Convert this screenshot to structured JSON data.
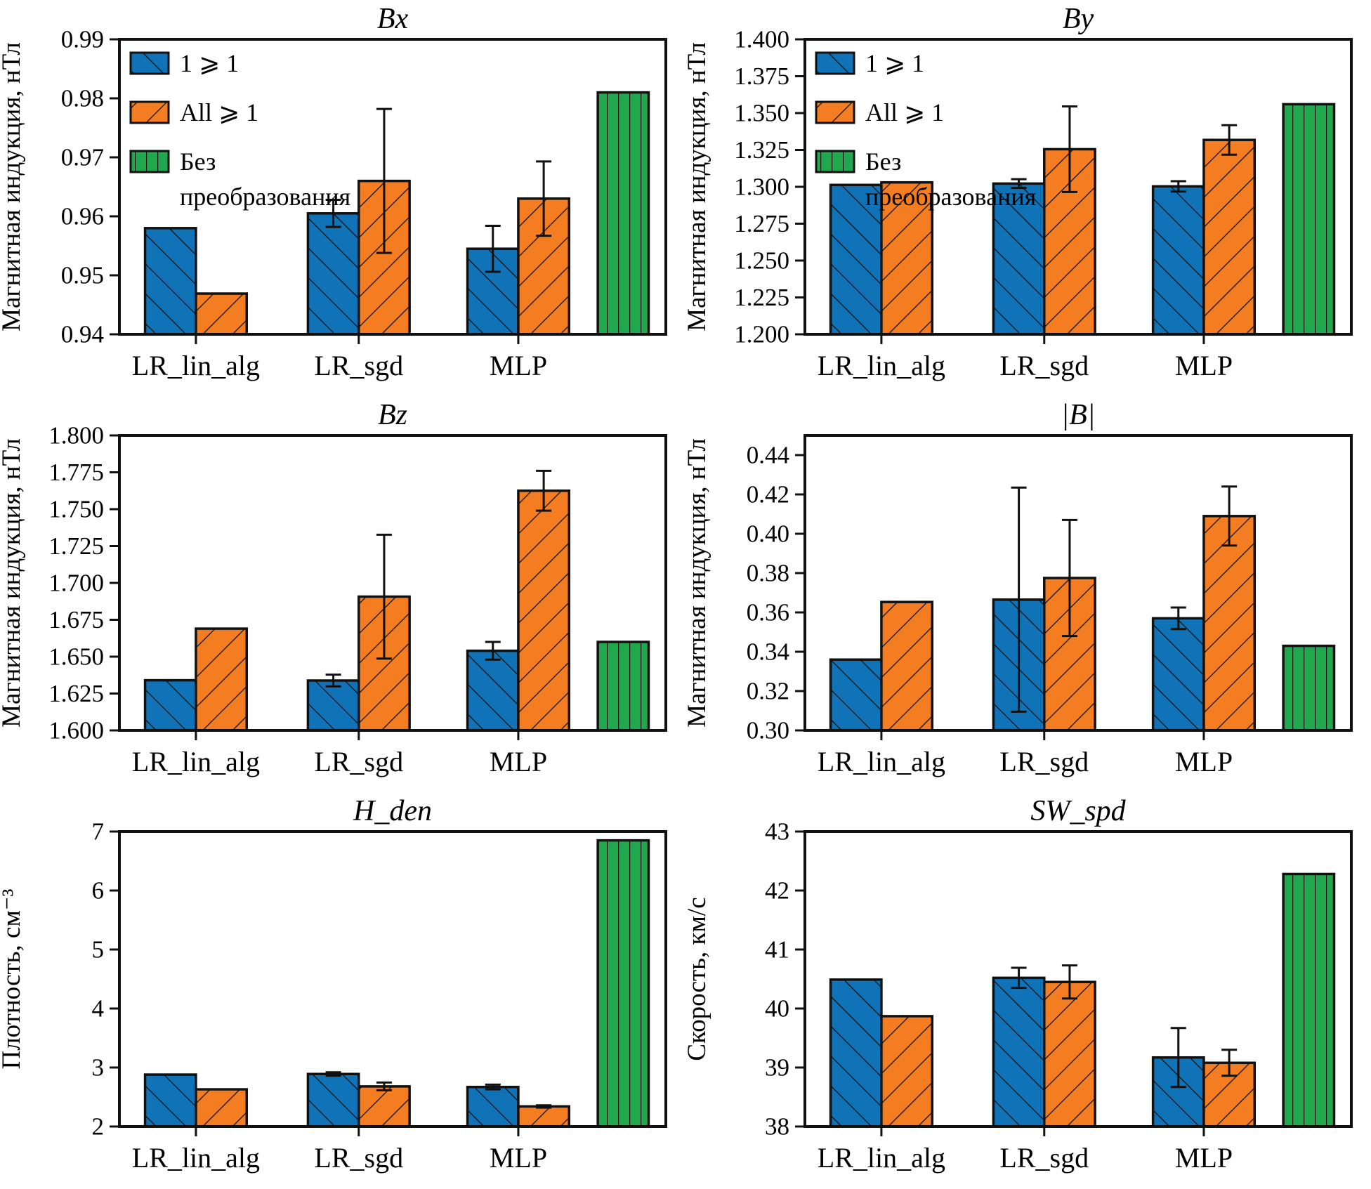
{
  "figure": {
    "background": "#ffffff",
    "colors": {
      "series1": "#1173b7",
      "series2": "#f47d21",
      "series3": "#20a84e",
      "edge": "#111111",
      "text": "#000000"
    },
    "legend": {
      "position": "upper left",
      "items": [
        {
          "label": "1 ⩾ 1",
          "series": "series1",
          "hatch": "backslash"
        },
        {
          "label": "All ⩾ 1",
          "series": "series2",
          "hatch": "slash"
        },
        {
          "label": "Без преобразования",
          "series": "series3",
          "hatch": "vertical"
        }
      ]
    },
    "categories": [
      "LR_lin_alg",
      "LR_sgd",
      "MLP"
    ]
  },
  "chart_data": [
    {
      "type": "bar",
      "title": "Bx",
      "ylabel": "Магнитная индукция, нТл",
      "xlabel": "",
      "ylim": [
        0.94,
        0.99
      ],
      "yticks": [
        0.94,
        0.95,
        0.96,
        0.97,
        0.98,
        0.99
      ],
      "ytick_labels": [
        "0.94",
        "0.95",
        "0.96",
        "0.97",
        "0.98",
        "0.99"
      ],
      "categories": [
        "LR_lin_alg",
        "LR_sgd",
        "MLP"
      ],
      "grid": false,
      "legend": true,
      "series": [
        {
          "name": "1 ⩾ 1",
          "values": [
            0.958,
            0.9605,
            0.9545
          ],
          "errors": [
            null,
            0.0023,
            0.0039
          ]
        },
        {
          "name": "All ⩾ 1",
          "values": [
            0.9469,
            0.966,
            0.963
          ],
          "errors": [
            null,
            0.0122,
            0.0063
          ]
        },
        {
          "name": "Без преобразования",
          "values": [
            0.981
          ],
          "errors": [
            null
          ]
        }
      ]
    },
    {
      "type": "bar",
      "title": "By",
      "ylabel": "Магнитная индукция, нТл",
      "xlabel": "",
      "ylim": [
        1.2,
        1.4
      ],
      "yticks": [
        1.2,
        1.225,
        1.25,
        1.275,
        1.3,
        1.325,
        1.35,
        1.375,
        1.4
      ],
      "ytick_labels": [
        "1.200",
        "1.225",
        "1.250",
        "1.275",
        "1.300",
        "1.325",
        "1.350",
        "1.375",
        "1.400"
      ],
      "categories": [
        "LR_lin_alg",
        "LR_sgd",
        "MLP"
      ],
      "grid": false,
      "legend": true,
      "series": [
        {
          "name": "1 ⩾ 1",
          "values": [
            1.3013,
            1.3022,
            1.3003
          ],
          "errors": [
            null,
            0.003,
            0.0035
          ]
        },
        {
          "name": "All ⩾ 1",
          "values": [
            1.303,
            1.3255,
            1.3318
          ],
          "errors": [
            null,
            0.029,
            0.01
          ]
        },
        {
          "name": "Без преобразования",
          "values": [
            1.356
          ],
          "errors": [
            null
          ]
        }
      ]
    },
    {
      "type": "bar",
      "title": "Bz",
      "ylabel": "Магнитная индукция, нТл",
      "xlabel": "",
      "ylim": [
        1.6,
        1.8
      ],
      "yticks": [
        1.6,
        1.625,
        1.65,
        1.675,
        1.7,
        1.725,
        1.75,
        1.775,
        1.8
      ],
      "ytick_labels": [
        "1.600",
        "1.625",
        "1.650",
        "1.675",
        "1.700",
        "1.725",
        "1.750",
        "1.775",
        "1.800"
      ],
      "categories": [
        "LR_lin_alg",
        "LR_sgd",
        "MLP"
      ],
      "grid": false,
      "legend": false,
      "series": [
        {
          "name": "1 ⩾ 1",
          "values": [
            1.634,
            1.6338,
            1.654
          ],
          "errors": [
            null,
            0.004,
            0.006
          ]
        },
        {
          "name": "All ⩾ 1",
          "values": [
            1.669,
            1.6907,
            1.7625
          ],
          "errors": [
            null,
            0.042,
            0.0135
          ]
        },
        {
          "name": "Без преобразования",
          "values": [
            1.66
          ],
          "errors": [
            null
          ]
        }
      ]
    },
    {
      "type": "bar",
      "title": "|B|",
      "ylabel": "Магнитная индукция, нТл",
      "xlabel": "",
      "ylim": [
        0.3,
        0.45
      ],
      "yticks": [
        0.3,
        0.32,
        0.34,
        0.36,
        0.38,
        0.4,
        0.42,
        0.44
      ],
      "ytick_labels": [
        "0.30",
        "0.32",
        "0.34",
        "0.36",
        "0.38",
        "0.40",
        "0.42",
        "0.44"
      ],
      "categories": [
        "LR_lin_alg",
        "LR_sgd",
        "MLP"
      ],
      "grid": false,
      "legend": false,
      "series": [
        {
          "name": "1 ⩾ 1",
          "values": [
            0.336,
            0.3665,
            0.357
          ],
          "errors": [
            null,
            0.057,
            0.0055
          ]
        },
        {
          "name": "All ⩾ 1",
          "values": [
            0.3653,
            0.3775,
            0.409
          ],
          "errors": [
            null,
            0.0295,
            0.015
          ]
        },
        {
          "name": "Без преобразования",
          "values": [
            0.343
          ],
          "errors": [
            null
          ]
        }
      ]
    },
    {
      "type": "bar",
      "title": "H_den",
      "ylabel": "Плотность, см⁻³",
      "xlabel": "",
      "ylim": [
        2,
        7
      ],
      "yticks": [
        2,
        3,
        4,
        5,
        6,
        7
      ],
      "ytick_labels": [
        "2",
        "3",
        "4",
        "5",
        "6",
        "7"
      ],
      "categories": [
        "LR_lin_alg",
        "LR_sgd",
        "MLP"
      ],
      "grid": false,
      "legend": false,
      "series": [
        {
          "name": "1 ⩾ 1",
          "values": [
            2.88,
            2.89,
            2.67
          ],
          "errors": [
            null,
            0.03,
            0.04
          ]
        },
        {
          "name": "All ⩾ 1",
          "values": [
            2.63,
            2.68,
            2.34
          ],
          "errors": [
            null,
            0.065,
            0.02
          ]
        },
        {
          "name": "Без преобразования",
          "values": [
            6.85
          ],
          "errors": [
            null
          ]
        }
      ]
    },
    {
      "type": "bar",
      "title": "SW_spd",
      "ylabel": "Скорость, км/с",
      "xlabel": "",
      "ylim": [
        38,
        43
      ],
      "yticks": [
        38,
        39,
        40,
        41,
        42,
        43
      ],
      "ytick_labels": [
        "38",
        "39",
        "40",
        "41",
        "42",
        "43"
      ],
      "categories": [
        "LR_lin_alg",
        "LR_sgd",
        "MLP"
      ],
      "grid": false,
      "legend": false,
      "series": [
        {
          "name": "1 ⩾ 1",
          "values": [
            40.49,
            40.52,
            39.17
          ],
          "errors": [
            null,
            0.17,
            0.5
          ]
        },
        {
          "name": "All ⩾ 1",
          "values": [
            39.87,
            40.45,
            39.08
          ],
          "errors": [
            null,
            0.28,
            0.22
          ]
        },
        {
          "name": "Без преобразования",
          "values": [
            42.28
          ],
          "errors": [
            null
          ]
        }
      ]
    }
  ]
}
